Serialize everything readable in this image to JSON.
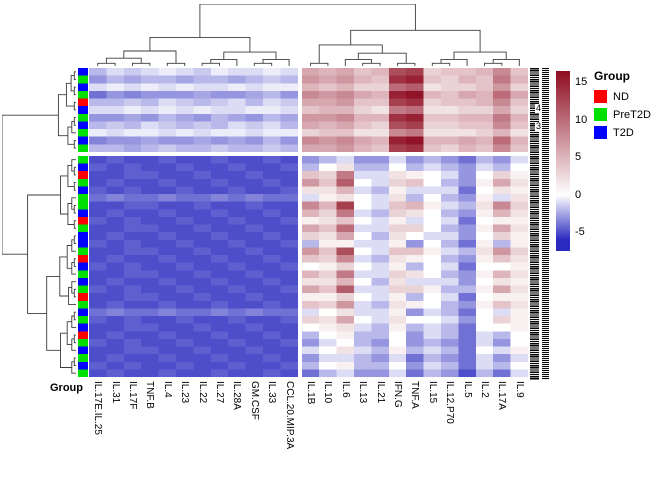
{
  "figure": {
    "bottom_axis_group_label": "Group",
    "row_label_fragments": [
      "4",
      "3"
    ]
  },
  "legend": {
    "title": "Group",
    "items": [
      {
        "label": "ND",
        "color": "#FF0000"
      },
      {
        "label": "PreT2D",
        "color": "#00E000"
      },
      {
        "label": "T2D",
        "color": "#0000FF"
      }
    ]
  },
  "colorbar": {
    "ticks": [
      15,
      10,
      5,
      0,
      -5
    ]
  },
  "chart_data": {
    "type": "heatmap",
    "columns": [
      "IL.17E.IL.25",
      "IL.31",
      "IL.17F",
      "TNF.B",
      "IL.4",
      "IL.23",
      "IL.22",
      "IL.27",
      "IL.28A",
      "GM.CSF",
      "IL.33",
      "CCL.20.MIP.3A",
      "IL.1B",
      "IL.10",
      "IL.6",
      "IL.13",
      "IL.21",
      "IFN.G",
      "TNF.A",
      "IL.15",
      "IL.12.P70",
      "IL.5",
      "IL.2",
      "IL.17A",
      "IL.9"
    ],
    "col_split_after": 12,
    "row_split_after": 11,
    "row_annotation_title": "Group",
    "group_colors": {
      "ND": "#FF0000",
      "PreT2D": "#00E000",
      "T2D": "#0000FF"
    },
    "row_groups": [
      "T2D",
      "PreT2D",
      "T2D",
      "PreT2D",
      "ND",
      "T2D",
      "PreT2D",
      "T2D",
      "PreT2D",
      "T2D",
      "PreT2D",
      "PreT2D",
      "T2D",
      "ND",
      "PreT2D",
      "T2D",
      "PreT2D",
      "PreT2D",
      "T2D",
      "ND",
      "PreT2D",
      "T2D",
      "T2D",
      "PreT2D",
      "ND",
      "T2D",
      "PreT2D",
      "T2D",
      "PreT2D",
      "ND",
      "PreT2D",
      "T2D",
      "PreT2D",
      "T2D",
      "ND",
      "PreT2D",
      "T2D",
      "PreT2D",
      "T2D",
      "PreT2D"
    ],
    "color_scale": {
      "stops": [
        {
          "v": -6,
          "c": "#2A2AC0"
        },
        {
          "v": 0,
          "c": "#FFFFFF"
        },
        {
          "v": 16.5,
          "c": "#8E0C20"
        }
      ],
      "legend_ticks": [
        15,
        10,
        5,
        0,
        -5
      ]
    },
    "values": [
      [
        -2,
        -1,
        -1.5,
        -1,
        -0.5,
        -1,
        -1.5,
        -0.5,
        -1,
        -1,
        -0.5,
        -1,
        6,
        5,
        6,
        4,
        5,
        12,
        13,
        3,
        4,
        4,
        5,
        8,
        4
      ],
      [
        -3,
        -2,
        -2.5,
        -2,
        -2,
        -2.5,
        -2,
        -2,
        -2.5,
        -2,
        -1.5,
        -2,
        7,
        6,
        7,
        5,
        4,
        14,
        15,
        4,
        3,
        5,
        4,
        9,
        5
      ],
      [
        -1,
        -0.5,
        -1,
        -0.5,
        -1,
        -0.5,
        -1,
        -1,
        -0.5,
        -1,
        -0.5,
        -0.5,
        5,
        4,
        5,
        3,
        3,
        10,
        11,
        2,
        3,
        3,
        4,
        7,
        3
      ],
      [
        -4,
        -3,
        -3.5,
        -3,
        -3,
        -3,
        -2.5,
        -3,
        -3,
        -2.5,
        -2,
        -3,
        8,
        7,
        8,
        6,
        5,
        15,
        16,
        5,
        4,
        6,
        5,
        10,
        6
      ],
      [
        -2,
        -2,
        -1.5,
        -2,
        -1,
        -1.5,
        -2,
        -1.5,
        -1,
        -2,
        -1,
        -1.5,
        6,
        6,
        7,
        4,
        4,
        13,
        14,
        3,
        4,
        4,
        5,
        8,
        4
      ],
      [
        -1,
        -1,
        -0.5,
        -1,
        -0.5,
        -1,
        -0.5,
        -1,
        -1,
        -0.5,
        -0.5,
        -1,
        4,
        5,
        5,
        3,
        2,
        9,
        10,
        2,
        2,
        3,
        3,
        6,
        3
      ],
      [
        -3,
        -3,
        -2.5,
        -3,
        -2,
        -2.5,
        -3,
        -2,
        -2.5,
        -3,
        -2,
        -2.5,
        7,
        7,
        8,
        5,
        5,
        14,
        15,
        4,
        4,
        5,
        5,
        9,
        5
      ],
      [
        -2,
        -1.5,
        -2,
        -1,
        -1.5,
        -2,
        -1.5,
        -2,
        -1,
        -1.5,
        -1,
        -2,
        6,
        5,
        6,
        4,
        3,
        12,
        13,
        3,
        3,
        4,
        4,
        8,
        4
      ],
      [
        -0.5,
        -1,
        -0.5,
        -0.5,
        -1,
        -0.5,
        -1,
        -0.5,
        -0.5,
        -1,
        -0.5,
        -0.5,
        3,
        4,
        4,
        2,
        2,
        8,
        9,
        2,
        2,
        2,
        3,
        5,
        2
      ],
      [
        -3.5,
        -3,
        -3,
        -2.5,
        -3,
        -3,
        -2.5,
        -3,
        -2.5,
        -3,
        -2,
        -3,
        8,
        7,
        8,
        6,
        5,
        15,
        16,
        5,
        5,
        6,
        5,
        10,
        5
      ],
      [
        -2,
        -2,
        -2.5,
        -2,
        -1.5,
        -2,
        -2,
        -1.5,
        -2,
        -2,
        -1.5,
        -2,
        6,
        6,
        7,
        5,
        4,
        13,
        14,
        4,
        3,
        5,
        4,
        8,
        4
      ],
      [
        -5,
        -4.5,
        -5,
        -5,
        -4.5,
        -5,
        -5,
        -4.5,
        -5,
        -5,
        -4.5,
        -5,
        -3,
        -2,
        -1,
        -3,
        -3,
        -1,
        -3,
        -2,
        -3,
        -4,
        -2,
        -3,
        -1
      ],
      [
        -4.5,
        -5,
        -4.5,
        -5,
        -5,
        -4.5,
        -5,
        -5,
        -4.5,
        -5,
        -5,
        -4.5,
        -2,
        0,
        2,
        -2,
        -2,
        0,
        -2,
        -1,
        -2,
        -3,
        -1,
        -2,
        0
      ],
      [
        -5,
        -5,
        -4.5,
        -4.5,
        -5,
        -5,
        -4.5,
        -5,
        -5,
        -4.5,
        -5,
        -5,
        4,
        3,
        9,
        -1,
        -1,
        2,
        1,
        0,
        -1,
        -3,
        0,
        3,
        1
      ],
      [
        -5,
        -4.5,
        -5,
        -5,
        -4.5,
        -5,
        -5,
        -4.5,
        -5,
        -5,
        -4.5,
        -5,
        7,
        4,
        11,
        0,
        -1,
        3,
        4,
        0,
        -2,
        -3,
        1,
        6,
        2
      ],
      [
        -4.5,
        -5,
        -4.5,
        -5,
        -5,
        -4.5,
        -5,
        -5,
        -4.5,
        -5,
        -5,
        -4.5,
        2,
        2,
        5,
        -1,
        -2,
        1,
        -1,
        -1,
        -1,
        -4,
        0,
        2,
        1
      ],
      [
        -4,
        -3.5,
        -4,
        -4,
        -3.5,
        -4,
        -4,
        -3.5,
        -4,
        -3.5,
        -4,
        -4,
        -1,
        1,
        2,
        0,
        -1,
        2,
        -2,
        0,
        -2,
        -3,
        1,
        -1,
        2
      ],
      [
        -5,
        -5,
        -4.5,
        -4.5,
        -5,
        -5,
        -4.5,
        -5,
        -5,
        -4.5,
        -5,
        -5,
        8,
        5,
        13,
        0,
        -1,
        4,
        5,
        1,
        -1,
        -2,
        2,
        8,
        3
      ],
      [
        -5,
        -4.5,
        -5,
        -5,
        -4.5,
        -5,
        -5,
        -4.5,
        -5,
        -5,
        -4.5,
        -5,
        5,
        3,
        9,
        -1,
        -2,
        3,
        2,
        0,
        -2,
        -3,
        1,
        5,
        2
      ],
      [
        -4.5,
        -5,
        -4.5,
        -5,
        -5,
        -4.5,
        -5,
        -5,
        -4.5,
        -5,
        -5,
        -4.5,
        1,
        2,
        4,
        0,
        -1,
        1,
        -1,
        0,
        -1,
        -4,
        0,
        1,
        1
      ],
      [
        -5,
        -5,
        -4.5,
        -4.5,
        -5,
        -5,
        -4.5,
        -5,
        -5,
        -4.5,
        -5,
        -5,
        6,
        4,
        10,
        -1,
        -1,
        3,
        3,
        0,
        -2,
        -3,
        1,
        6,
        2
      ],
      [
        -5,
        -4.5,
        -5,
        -5,
        -4.5,
        -5,
        -5,
        -4.5,
        -5,
        -5,
        -4.5,
        -5,
        3,
        2,
        6,
        0,
        -2,
        2,
        0,
        -1,
        -1,
        -3,
        0,
        3,
        1
      ],
      [
        -4.5,
        -5,
        -4.5,
        -5,
        -5,
        -4.5,
        -5,
        -5,
        -4.5,
        -5,
        -5,
        -4.5,
        -2,
        1,
        1,
        -1,
        -1,
        1,
        -3,
        0,
        -2,
        -4,
        1,
        -2,
        1
      ],
      [
        -5,
        -5,
        -4.5,
        -4.5,
        -5,
        -5,
        -4.5,
        -5,
        -5,
        -4.5,
        -5,
        -5,
        7,
        4,
        12,
        0,
        -1,
        4,
        4,
        1,
        -1,
        -2,
        2,
        7,
        3
      ],
      [
        -5,
        -4.5,
        -5,
        -5,
        -4.5,
        -5,
        -5,
        -4.5,
        -5,
        -5,
        -4.5,
        -5,
        4,
        3,
        8,
        -1,
        -2,
        2,
        1,
        0,
        -2,
        -3,
        1,
        4,
        2
      ],
      [
        -4.5,
        -5,
        -4.5,
        -5,
        -5,
        -4.5,
        -5,
        -5,
        -4.5,
        -5,
        -5,
        -4.5,
        0,
        1,
        3,
        0,
        -1,
        1,
        -2,
        0,
        -1,
        -4,
        0,
        0,
        1
      ],
      [
        -5,
        -5,
        -4.5,
        -4.5,
        -5,
        -5,
        -4.5,
        -5,
        -5,
        -4.5,
        -5,
        -5,
        5,
        3,
        9,
        -1,
        -1,
        3,
        2,
        0,
        -2,
        -3,
        1,
        5,
        2
      ],
      [
        -5,
        -4.5,
        -5,
        -5,
        -4.5,
        -5,
        -5,
        -4.5,
        -5,
        -5,
        -4.5,
        -5,
        2,
        2,
        5,
        0,
        -2,
        2,
        -1,
        -1,
        -1,
        -3,
        0,
        2,
        1
      ],
      [
        -4.5,
        -5,
        -4.5,
        -5,
        -5,
        -4.5,
        -5,
        -5,
        -4.5,
        -5,
        -5,
        -4.5,
        6,
        4,
        11,
        -1,
        -1,
        3,
        3,
        1,
        -2,
        -2,
        1,
        6,
        2
      ],
      [
        -5,
        -5,
        -4.5,
        -4.5,
        -5,
        -5,
        -4.5,
        -5,
        -5,
        -4.5,
        -5,
        -5,
        1,
        1,
        3,
        0,
        -1,
        1,
        -2,
        0,
        -1,
        -4,
        0,
        1,
        1
      ],
      [
        -5,
        -4.5,
        -5,
        -5,
        -4.5,
        -5,
        -5,
        -4.5,
        -5,
        -5,
        -4.5,
        -5,
        4,
        3,
        7,
        -1,
        -2,
        2,
        1,
        0,
        -2,
        -3,
        1,
        4,
        2
      ],
      [
        -4,
        -3.5,
        -4,
        -4,
        -3.5,
        -4,
        -4,
        -3.5,
        -4,
        -3.5,
        -4,
        -4,
        -1,
        0,
        2,
        -1,
        -1,
        1,
        -3,
        -1,
        -2,
        -4,
        0,
        -1,
        1
      ],
      [
        -4.5,
        -5,
        -4.5,
        -5,
        -5,
        -4.5,
        -5,
        -5,
        -4.5,
        -5,
        -5,
        -4.5,
        3,
        2,
        6,
        0,
        -1,
        2,
        0,
        0,
        -1,
        -3,
        0,
        3,
        1
      ],
      [
        -5,
        -5,
        -4.5,
        -4.5,
        -5,
        -5,
        -4.5,
        -5,
        -5,
        -4.5,
        -5,
        -5,
        0,
        1,
        2,
        -1,
        -2,
        1,
        -2,
        -1,
        -2,
        -4,
        0,
        0,
        1
      ],
      [
        -5,
        -4.5,
        -5,
        -5,
        -4.5,
        -5,
        -5,
        -4.5,
        -5,
        -5,
        -4.5,
        -5,
        -2,
        0,
        1,
        -2,
        -2,
        0,
        -3,
        -1,
        -2,
        -4,
        -1,
        -2,
        0
      ],
      [
        -4.5,
        -5,
        -4.5,
        -5,
        -5,
        -4.5,
        -5,
        -5,
        -4.5,
        -5,
        -5,
        -4.5,
        -3,
        -1,
        0,
        -2,
        -3,
        0,
        -3,
        -2,
        -3,
        -4,
        -1,
        -3,
        0
      ],
      [
        -5,
        -5,
        -4.5,
        -4.5,
        -5,
        -5,
        -4.5,
        -5,
        -5,
        -4.5,
        -5,
        -5,
        -1,
        0,
        2,
        -1,
        -2,
        1,
        -2,
        -1,
        -2,
        -4,
        0,
        -1,
        1
      ],
      [
        -5,
        -4.5,
        -5,
        -5,
        -4.5,
        -5,
        -5,
        -4.5,
        -5,
        -5,
        -4.5,
        -5,
        -3,
        -1,
        -1,
        -2,
        -3,
        -1,
        -4,
        -2,
        -3,
        -4,
        -1,
        -3,
        -1
      ],
      [
        -4.5,
        -5,
        -4.5,
        -5,
        -5,
        -4.5,
        -5,
        -5,
        -4.5,
        -5,
        -5,
        -4.5,
        -2,
        0,
        1,
        -2,
        -2,
        0,
        -3,
        -1,
        -2,
        -4,
        -1,
        -2,
        0
      ],
      [
        -5,
        -4.5,
        -5,
        -5,
        -4.5,
        -5,
        -5,
        -4.5,
        -5,
        -5,
        -4.5,
        -5,
        -4,
        -2,
        -1,
        -3,
        -3,
        -1,
        -4,
        -2,
        -3,
        -5,
        -2,
        -4,
        -1
      ]
    ]
  }
}
